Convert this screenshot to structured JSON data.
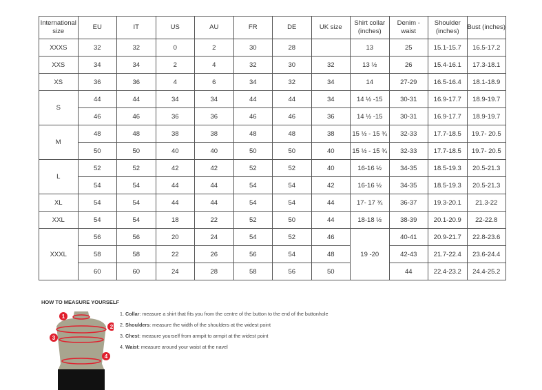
{
  "table": {
    "headers": [
      "International size",
      "EU",
      "IT",
      "US",
      "AU",
      "FR",
      "DE",
      "UK size",
      "Shirt collar (inches)",
      "Denim - waist",
      "Shoulder (inches)",
      "Bust (inches)"
    ],
    "rows": [
      [
        "XXXS",
        "32",
        "32",
        "0",
        "2",
        "30",
        "28",
        "",
        "13",
        "25",
        "15.1-15.7",
        "16.5-17.2"
      ],
      [
        "XXS",
        "34",
        "34",
        "2",
        "4",
        "32",
        "30",
        "32",
        "13 ½",
        "26",
        "15.4-16.1",
        "17.3-18.1"
      ],
      [
        "XS",
        "36",
        "36",
        "4",
        "6",
        "34",
        "32",
        "34",
        "14",
        "27-29",
        "16.5-16.4",
        "18.1-18.9"
      ],
      [
        "S",
        "44",
        "44",
        "34",
        "34",
        "44",
        "44",
        "34",
        "14 ½ -15",
        "30-31",
        "16.9-17.7",
        "18.9-19.7"
      ],
      [
        null,
        "46",
        "46",
        "36",
        "36",
        "46",
        "46",
        "36",
        "14 ½ -15",
        "30-31",
        "16.9-17.7",
        "18.9-19.7"
      ],
      [
        "M",
        "48",
        "48",
        "38",
        "38",
        "48",
        "48",
        "38",
        "15 ½ - 15 ¾",
        "32-33",
        "17.7-18.5",
        "19.7- 20.5"
      ],
      [
        null,
        "50",
        "50",
        "40",
        "40",
        "50",
        "50",
        "40",
        "15 ½ - 15 ¾",
        "32-33",
        "17.7-18.5",
        "19.7- 20.5"
      ],
      [
        "L",
        "52",
        "52",
        "42",
        "42",
        "52",
        "52",
        "40",
        "16-16 ½",
        "34-35",
        "18.5-19.3",
        "20.5-21.3"
      ],
      [
        null,
        "54",
        "54",
        "44",
        "44",
        "54",
        "54",
        "42",
        "16-16 ½",
        "34-35",
        "18.5-19.3",
        "20.5-21.3"
      ],
      [
        "XL",
        "54",
        "54",
        "44",
        "44",
        "54",
        "54",
        "44",
        "17- 17 ¾",
        "36-37",
        "19.3-20.1",
        "21.3-22"
      ],
      [
        "XXL",
        "54",
        "54",
        "18",
        "22",
        "52",
        "50",
        "44",
        "18-18 ½",
        "38-39",
        "20.1-20.9",
        "22-22.8"
      ],
      [
        "XXXL",
        "56",
        "56",
        "20",
        "24",
        "54",
        "52",
        "46",
        "19 -20",
        "40-41",
        "20.9-21.7",
        "22.8-23.6"
      ],
      [
        null,
        "58",
        "58",
        "22",
        "26",
        "56",
        "54",
        "48",
        null,
        "42-43",
        "21.7-22.4",
        "23.6-24.4"
      ],
      [
        null,
        "60",
        "60",
        "24",
        "28",
        "58",
        "56",
        "50",
        null,
        "44",
        "22.4-23.2",
        "24.4-25.2"
      ]
    ],
    "spans": {
      "0": {
        "3": 2,
        "5": 2,
        "7": 2,
        "11": 3
      },
      "8": {
        "11": 3
      }
    }
  },
  "measure": {
    "title": "HOW TO MEASURE YOURSELF",
    "steps": [
      {
        "num": "1.",
        "term": "Collar",
        "text": ": measure a shirt that fits you from the centre of the button to the end of the buttonhole"
      },
      {
        "num": "2.",
        "term": "Shoulders",
        "text": ": measure the width of the shoulders at the widest point"
      },
      {
        "num": "3.",
        "term": "Chest",
        "text": ": measure yourself from armpit to armpit at the widest point"
      },
      {
        "num": "4.",
        "term": "Waist",
        "text": ": measure around your waist at the navel"
      }
    ],
    "markers": [
      "1",
      "2",
      "3",
      "4"
    ],
    "colors": {
      "marker": "#e0202e",
      "torso": "#a8a58f",
      "pants": "#111111"
    }
  }
}
